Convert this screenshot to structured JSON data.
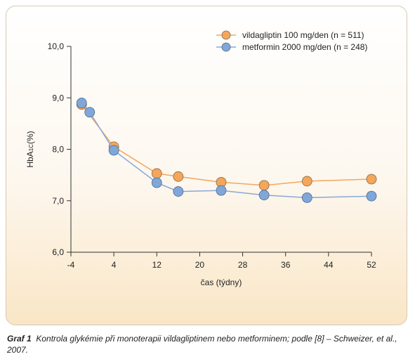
{
  "chart_data": {
    "type": "line",
    "xlabel": "čas (týdny)",
    "ylabel_main": "HbA",
    "ylabel_sub": "1C",
    "ylabel_tail": "(%)",
    "xlim": [
      -4,
      52
    ],
    "ylim": [
      6.0,
      10.0
    ],
    "xticks": [
      -4,
      4,
      12,
      20,
      28,
      36,
      44,
      52
    ],
    "yticks": [
      6.0,
      7.0,
      8.0,
      9.0,
      10.0
    ],
    "ytick_labels": [
      "6,0",
      "7,0",
      "8,0",
      "9,0",
      "10,0"
    ],
    "legend_position": "top-right",
    "series": [
      {
        "name": "vildagliptin 100 mg/den (n = 511)",
        "color": "#f4a65a",
        "x": [
          -2,
          4,
          12,
          16,
          24,
          32,
          40,
          52
        ],
        "y": [
          8.87,
          8.05,
          7.53,
          7.47,
          7.36,
          7.3,
          7.38,
          7.42
        ]
      },
      {
        "name": "metformin 2000 mg/den (n = 248)",
        "color": "#7fa8d8",
        "x": [
          -2,
          -0.5,
          4,
          12,
          16,
          24,
          32,
          40,
          52
        ],
        "y": [
          8.9,
          8.72,
          7.98,
          7.35,
          7.18,
          7.2,
          7.11,
          7.06,
          7.09
        ]
      }
    ]
  },
  "caption": {
    "label": "Graf 1",
    "text": "Kontrola glykémie při monoterapii vildagliptinem nebo metforminem; podle [8] – Schweizer, et al., 2007."
  }
}
